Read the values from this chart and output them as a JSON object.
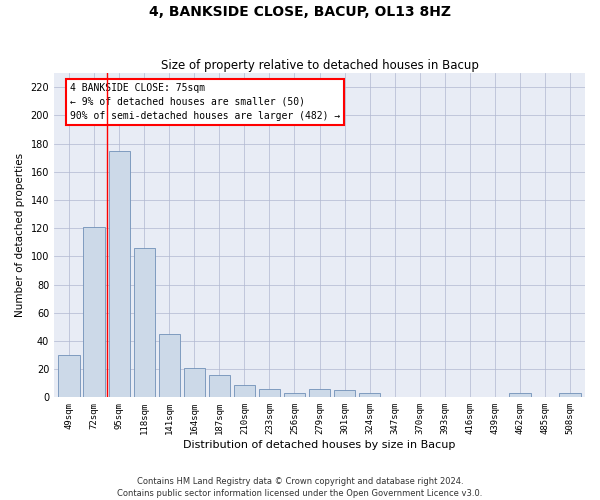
{
  "title": "4, BANKSIDE CLOSE, BACUP, OL13 8HZ",
  "subtitle": "Size of property relative to detached houses in Bacup",
  "xlabel": "Distribution of detached houses by size in Bacup",
  "ylabel": "Number of detached properties",
  "footer_line1": "Contains HM Land Registry data © Crown copyright and database right 2024.",
  "footer_line2": "Contains public sector information licensed under the Open Government Licence v3.0.",
  "bar_labels": [
    "49sqm",
    "72sqm",
    "95sqm",
    "118sqm",
    "141sqm",
    "164sqm",
    "187sqm",
    "210sqm",
    "233sqm",
    "256sqm",
    "279sqm",
    "301sqm",
    "324sqm",
    "347sqm",
    "370sqm",
    "393sqm",
    "416sqm",
    "439sqm",
    "462sqm",
    "485sqm",
    "508sqm"
  ],
  "bar_values": [
    30,
    121,
    175,
    106,
    45,
    21,
    16,
    9,
    6,
    3,
    6,
    5,
    3,
    0,
    0,
    0,
    0,
    0,
    3,
    0,
    3
  ],
  "bar_color": "#ccd9e8",
  "bar_edgecolor": "#7090b8",
  "grid_color": "#b0b8d0",
  "background_color": "#e8ecf5",
  "red_line_x": 1.5,
  "annotation_text": "4 BANKSIDE CLOSE: 75sqm\n← 9% of detached houses are smaller (50)\n90% of semi-detached houses are larger (482) →",
  "ylim": [
    0,
    230
  ],
  "yticks": [
    0,
    20,
    40,
    60,
    80,
    100,
    120,
    140,
    160,
    180,
    200,
    220
  ]
}
